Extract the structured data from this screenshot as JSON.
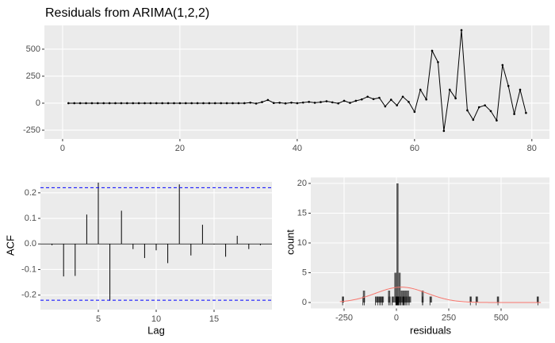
{
  "chart_data": [
    {
      "type": "line",
      "title": "Residuals from ARIMA(1,2,2)",
      "color": "#000000",
      "x": [
        1,
        2,
        3,
        4,
        5,
        6,
        7,
        8,
        9,
        10,
        11,
        12,
        13,
        14,
        15,
        16,
        17,
        18,
        19,
        20,
        21,
        22,
        23,
        24,
        25,
        26,
        27,
        28,
        29,
        30,
        31,
        32,
        33,
        34,
        35,
        36,
        37,
        38,
        39,
        40,
        41,
        42,
        43,
        44,
        45,
        46,
        47,
        48,
        49,
        50,
        51,
        52,
        53,
        54,
        55,
        56,
        57,
        58,
        59,
        60,
        61,
        62,
        63,
        64,
        65,
        66,
        67,
        68,
        69,
        70,
        71,
        72,
        73,
        74,
        75,
        76,
        77,
        78,
        79
      ],
      "values": [
        0,
        0,
        0,
        0,
        0,
        0,
        0,
        0,
        0,
        0,
        0,
        0,
        0,
        0,
        0,
        0,
        0,
        0,
        0,
        0,
        0,
        0,
        0,
        0,
        0,
        0,
        0,
        0,
        0,
        0,
        0,
        5,
        -3,
        10,
        30,
        2,
        4,
        -2,
        5,
        0,
        6,
        12,
        4,
        10,
        18,
        8,
        -2,
        22,
        3,
        22,
        35,
        60,
        38,
        50,
        -30,
        32,
        -20,
        60,
        12,
        -80,
        125,
        35,
        485,
        380,
        -257,
        125,
        45,
        676,
        -66,
        -154,
        -37,
        -20,
        -73,
        -160,
        353,
        160,
        -100,
        125,
        -90
      ],
      "xlim": [
        -3.1,
        83
      ],
      "xticks": [
        0,
        20,
        40,
        60,
        80
      ],
      "ylim": [
        -331,
        720
      ],
      "yticks": [
        -250,
        0,
        250,
        500
      ],
      "grid": true
    },
    {
      "type": "stem",
      "xlabel": "Lag",
      "ylabel": "ACF",
      "color": "#000000",
      "x": [
        1,
        2,
        3,
        4,
        5,
        6,
        7,
        8,
        9,
        10,
        11,
        12,
        13,
        14,
        15,
        16,
        17,
        18,
        19
      ],
      "values": [
        -0.005,
        -0.127,
        -0.125,
        0.115,
        0.24,
        -0.222,
        0.13,
        -0.02,
        -0.055,
        -0.025,
        -0.075,
        0.233,
        -0.045,
        0.075,
        -0.002,
        -0.05,
        0.032,
        -0.02,
        -0.005
      ],
      "ci_lines": [
        -0.22,
        0.22
      ],
      "ci_color": "#0000FF",
      "xlim": [
        0,
        20
      ],
      "xticks": [
        5,
        10,
        15
      ],
      "ylim": [
        -0.257,
        0.243
      ],
      "yticks": [
        -0.2,
        -0.1,
        {
          "value": 0,
          "label": "0.0"
        },
        0.1,
        0.2
      ],
      "grid": true
    },
    {
      "type": "histogram",
      "xlabel": "residuals",
      "ylabel": "count",
      "color": "#595959",
      "density_color": "#F8766D",
      "bins": [
        -270,
        -260,
        -250,
        -240,
        -230,
        -220,
        -210,
        -200,
        -190,
        -180,
        -170,
        -160,
        -150,
        -140,
        -130,
        -120,
        -110,
        -100,
        -90,
        -80,
        -70,
        -60,
        -50,
        -40,
        -30,
        -20,
        -10,
        0,
        10,
        20,
        30,
        40,
        50,
        60,
        70,
        80,
        90,
        100,
        110,
        120,
        130,
        140,
        150,
        160,
        170,
        180,
        190,
        200,
        210,
        220,
        230,
        240,
        250,
        260,
        270,
        280,
        290,
        300,
        310,
        320,
        330,
        340,
        350,
        360,
        370,
        380,
        390,
        400,
        410,
        420,
        430,
        440,
        450,
        460,
        470,
        480,
        490,
        500,
        510,
        520,
        530,
        540,
        550,
        560,
        570,
        580,
        590,
        600,
        610,
        620,
        630,
        640,
        650,
        660,
        670,
        680,
        690
      ],
      "counts": [
        0,
        1,
        0,
        0,
        0,
        0,
        0,
        0,
        0,
        0,
        0,
        2,
        0,
        0,
        0,
        0,
        0,
        1,
        1,
        1,
        1,
        0,
        0,
        2,
        0,
        1,
        5,
        20,
        5,
        2,
        2,
        2,
        2,
        1,
        0,
        0,
        0,
        0,
        0,
        2,
        0,
        0,
        0,
        1,
        0,
        0,
        0,
        0,
        0,
        0,
        0,
        0,
        0,
        0,
        0,
        0,
        0,
        0,
        0,
        0,
        0,
        0,
        1,
        0,
        0,
        1,
        0,
        0,
        0,
        0,
        0,
        0,
        0,
        0,
        0,
        1,
        0,
        0,
        0,
        0,
        0,
        0,
        0,
        0,
        0,
        0,
        0,
        0,
        0,
        0,
        0,
        0,
        0,
        0,
        1,
        0
      ],
      "xlim": [
        -409,
        731
      ],
      "xticks": [
        -250,
        0,
        250,
        500
      ],
      "ylim": [
        -1,
        21
      ],
      "yticks": [
        0,
        5,
        10,
        15,
        20
      ],
      "grid": true
    }
  ]
}
